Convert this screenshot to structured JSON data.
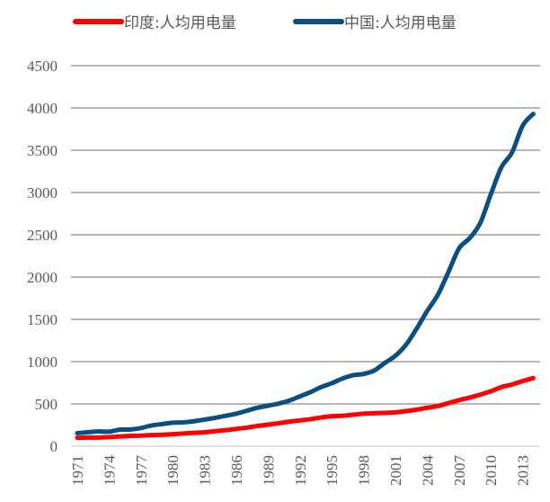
{
  "chart_data": {
    "type": "line",
    "title": "",
    "xlabel": "",
    "ylabel": "",
    "ylim": [
      0,
      4500
    ],
    "yticks": [
      0,
      500,
      1000,
      1500,
      2000,
      2500,
      3000,
      3500,
      4000,
      4500
    ],
    "xtick_labels": [
      "1971",
      "1974",
      "1977",
      "1980",
      "1983",
      "1986",
      "1989",
      "1992",
      "1995",
      "1998",
      "2001",
      "2004",
      "2007",
      "2010",
      "2013"
    ],
    "grid": "horizontal",
    "legend_position": "top",
    "x": [
      1971,
      1972,
      1973,
      1974,
      1975,
      1976,
      1977,
      1978,
      1979,
      1980,
      1981,
      1982,
      1983,
      1984,
      1985,
      1986,
      1987,
      1988,
      1989,
      1990,
      1991,
      1992,
      1993,
      1994,
      1995,
      1996,
      1997,
      1998,
      1999,
      2000,
      2001,
      2002,
      2003,
      2004,
      2005,
      2006,
      2007,
      2008,
      2009,
      2010,
      2011,
      2012,
      2013,
      2014
    ],
    "series": [
      {
        "name": "印度:人均用电量",
        "color": "#ff0000",
        "values": [
          100,
          102,
          103,
          108,
          115,
          122,
          125,
          132,
          135,
          142,
          150,
          158,
          165,
          178,
          190,
          205,
          220,
          240,
          255,
          272,
          290,
          305,
          320,
          340,
          355,
          360,
          372,
          385,
          390,
          395,
          400,
          415,
          432,
          455,
          475,
          510,
          545,
          575,
          610,
          650,
          700,
          730,
          770,
          805
        ]
      },
      {
        "name": "中国:人均用电量",
        "color": "#0b4f82",
        "values": [
          155,
          165,
          175,
          172,
          195,
          198,
          215,
          245,
          262,
          278,
          282,
          295,
          315,
          335,
          360,
          385,
          420,
          455,
          480,
          505,
          540,
          590,
          640,
          700,
          745,
          800,
          840,
          855,
          895,
          985,
          1070,
          1200,
          1390,
          1600,
          1790,
          2060,
          2340,
          2460,
          2640,
          2980,
          3300,
          3475,
          3790,
          3930
        ]
      }
    ]
  }
}
